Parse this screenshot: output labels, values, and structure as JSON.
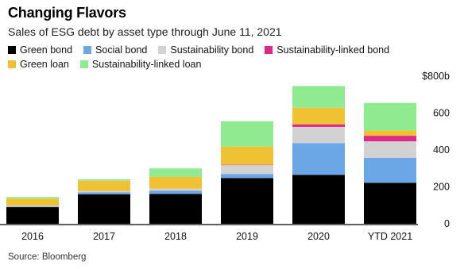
{
  "chart_data": {
    "type": "bar",
    "stacked": true,
    "title": "Changing Flavors",
    "subtitle": "Sales of ESG debt by asset type through June 11, 2021",
    "categories": [
      "2016",
      "2017",
      "2018",
      "2019",
      "2020",
      "YTD 2021"
    ],
    "series": [
      {
        "name": "Green bond",
        "color": "#000000",
        "values": [
          90,
          160,
          162,
          248,
          265,
          222
        ]
      },
      {
        "name": "Social bond",
        "color": "#6ba6e6",
        "values": [
          3,
          10,
          18,
          22,
          172,
          135
        ]
      },
      {
        "name": "Sustainability bond",
        "color": "#d2d2d2",
        "values": [
          6,
          8,
          10,
          48,
          88,
          90
        ]
      },
      {
        "name": "Sustainability-linked bond",
        "color": "#e0288a",
        "values": [
          0,
          0,
          0,
          2,
          14,
          30
        ]
      },
      {
        "name": "Green loan",
        "color": "#f0c233",
        "values": [
          38,
          55,
          65,
          98,
          90,
          28
        ]
      },
      {
        "name": "Sustainability-linked loan",
        "color": "#90eb90",
        "values": [
          8,
          8,
          45,
          138,
          118,
          150
        ]
      }
    ],
    "y_ticks": [
      {
        "value": 0,
        "label": "0"
      },
      {
        "value": 200,
        "label": "200"
      },
      {
        "value": 400,
        "label": "400"
      },
      {
        "value": 600,
        "label": "600"
      },
      {
        "value": 800,
        "label": "$800b"
      }
    ],
    "ylim": [
      0,
      800
    ],
    "grid": false,
    "y_axis_position": "right"
  },
  "source": "Source: Bloomberg"
}
